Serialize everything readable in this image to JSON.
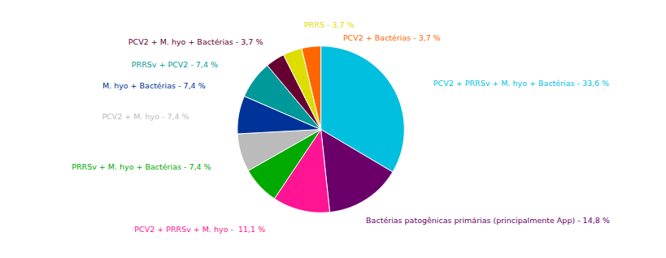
{
  "chart_data": {
    "type": "pie",
    "categories": [
      "PCV2 + PRRSv + M. hyo + Bactérias - 33,6 %",
      "Bactérias patogênicas primárias (principalmente App) - 14,8 %",
      "PCV2 + PRRSv + M. hyo -  11,1 %",
      "PRRSv + M. hyo + Bactérias - 7,4 %",
      "PCV2 + M. hyo - 7,4 %",
      "M. hyo + Bactérias - 7,4 %",
      "PRRSv + PCV2 - 7,4 %",
      "PCV2 + M. hyo + Bactérias - 3,7 %",
      "PRRS - 3,7 %",
      "PCV2 + Bactérias - 3,7 %"
    ],
    "values": [
      33.6,
      14.8,
      11.1,
      7.4,
      7.4,
      7.4,
      7.4,
      3.7,
      3.7,
      3.7
    ],
    "colors": [
      "#00BFDF",
      "#6B006B",
      "#FF1493",
      "#00AA00",
      "#BBBBBB",
      "#003399",
      "#009999",
      "#660033",
      "#DDDD00",
      "#FF6600"
    ]
  }
}
